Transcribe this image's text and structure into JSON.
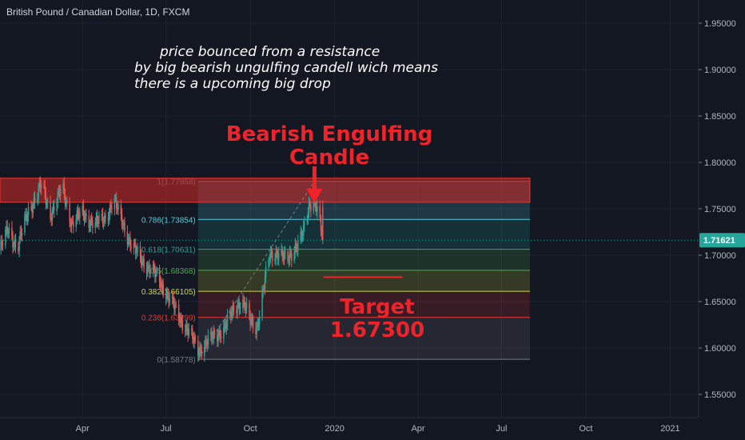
{
  "header": {
    "symbol_title": "British Pound / Canadian Dollar, 1D, FXCM"
  },
  "annotations": {
    "note_lines": [
      "price bounced from a resistance",
      "by big bearish ungulfing candell wich means",
      "there is a upcoming big drop"
    ],
    "bearish_line1": "Bearish Engulfing",
    "bearish_line2": "Candle",
    "target_label": "Target",
    "target_value": "1.67300"
  },
  "colors": {
    "background": "#131722",
    "grid": "#1e222d",
    "up": "#26a69a",
    "down": "#ef5350",
    "annotation_red": "#f0232a",
    "current_price": "#26a69a"
  },
  "chart_data": {
    "type": "candlestick",
    "title": "British Pound / Canadian Dollar, 1D, FXCM",
    "ylim": [
      1.525,
      1.975
    ],
    "y_ticks": [
      "1.95000",
      "1.90000",
      "1.85000",
      "1.80000",
      "1.75000",
      "1.70000",
      "1.65000",
      "1.60000",
      "1.55000"
    ],
    "y_tick_values": [
      1.95,
      1.9,
      1.85,
      1.8,
      1.75,
      1.7,
      1.65,
      1.6,
      1.55
    ],
    "x_ticks": [
      "Apr",
      "Jul",
      "Oct",
      "2020",
      "Apr",
      "Jul",
      "Oct",
      "2021"
    ],
    "x_tick_dates": [
      "2019-04-01",
      "2019-07-01",
      "2019-10-01",
      "2020-01-01",
      "2020-04-01",
      "2020-07-01",
      "2020-10-01",
      "2021-01-01"
    ],
    "x_start": "2019-01-01",
    "x_end": "2021-02-01",
    "current_price": {
      "value": 1.71621,
      "label": "1.71621"
    },
    "price_path": [
      [
        "2019-01-01",
        1.705
      ],
      [
        "2019-01-10",
        1.728
      ],
      [
        "2019-01-20",
        1.708
      ],
      [
        "2019-02-01",
        1.748
      ],
      [
        "2019-02-15",
        1.775
      ],
      [
        "2019-02-25",
        1.745
      ],
      [
        "2019-03-10",
        1.772
      ],
      [
        "2019-03-20",
        1.735
      ],
      [
        "2019-04-01",
        1.745
      ],
      [
        "2019-04-15",
        1.733
      ],
      [
        "2019-04-25",
        1.74
      ],
      [
        "2019-05-05",
        1.758
      ],
      [
        "2019-05-15",
        1.735
      ],
      [
        "2019-05-25",
        1.708
      ],
      [
        "2019-06-05",
        1.695
      ],
      [
        "2019-06-15",
        1.683
      ],
      [
        "2019-06-25",
        1.672
      ],
      [
        "2019-07-05",
        1.652
      ],
      [
        "2019-07-15",
        1.635
      ],
      [
        "2019-07-25",
        1.618
      ],
      [
        "2019-08-05",
        1.598
      ],
      [
        "2019-08-15",
        1.606
      ],
      [
        "2019-08-25",
        1.614
      ],
      [
        "2019-09-05",
        1.625
      ],
      [
        "2019-09-15",
        1.645
      ],
      [
        "2019-09-22",
        1.652
      ],
      [
        "2019-10-01",
        1.628
      ],
      [
        "2019-10-08",
        1.622
      ],
      [
        "2019-10-15",
        1.662
      ],
      [
        "2019-10-22",
        1.698
      ],
      [
        "2019-11-01",
        1.705
      ],
      [
        "2019-11-10",
        1.692
      ],
      [
        "2019-11-20",
        1.712
      ],
      [
        "2019-11-28",
        1.724
      ],
      [
        "2019-12-05",
        1.755
      ],
      [
        "2019-12-10",
        1.763
      ],
      [
        "2019-12-13",
        1.75
      ],
      [
        "2019-12-16",
        1.735
      ],
      [
        "2019-12-19",
        1.716
      ]
    ],
    "fibonacci": {
      "start": "2019-08-05",
      "end": "2020-08-01",
      "levels": [
        {
          "ratio": 1,
          "label": "1(1.77958)",
          "price": 1.77958,
          "color": "#787b86"
        },
        {
          "ratio": 0.786,
          "label": "0.786(1.73854)",
          "price": 1.73854,
          "color": "#4dd0e1"
        },
        {
          "ratio": 0.618,
          "label": "0.618(1.70631)",
          "price": 1.70631,
          "color": "#26a69a"
        },
        {
          "ratio": 0.5,
          "label": "0.5(1.68368)",
          "price": 1.68368,
          "color": "#4caf50"
        },
        {
          "ratio": 0.382,
          "label": "0.382(1.66105)",
          "price": 1.66105,
          "color": "#cddc39"
        },
        {
          "ratio": 0.236,
          "label": "0.236(1.63299)",
          "price": 1.63299,
          "color": "#e53935"
        },
        {
          "ratio": 0,
          "label": "0(1.58778)",
          "price": 1.58778,
          "color": "#787b86"
        }
      ]
    },
    "resistance_zone": {
      "start": "2019-01-01",
      "end": "2020-08-01",
      "top": 1.783,
      "bottom": 1.757
    },
    "target_line": {
      "start": "2019-12-20",
      "end": "2020-03-15",
      "price": 1.673
    }
  }
}
